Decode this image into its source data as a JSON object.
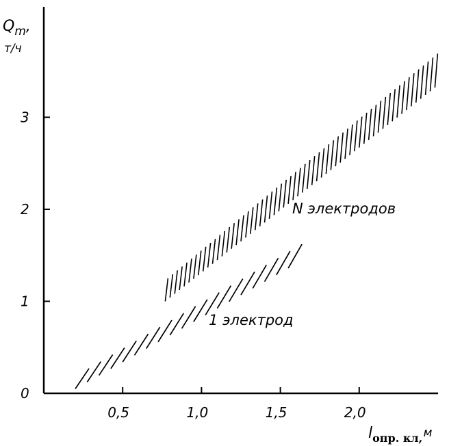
{
  "chart_data": {
    "type": "area",
    "ylabel_main": "Q",
    "ylabel_sub": "m",
    "ylabel_comma": ",",
    "ylabel_unit": "т/ч",
    "xlabel_main": "l",
    "xlabel_sub": "опр. кл",
    "xlabel_comma": ",",
    "xlabel_unit": "м",
    "xlim": [
      0,
      2.5
    ],
    "ylim": [
      0,
      4.2
    ],
    "x_ticks": [
      {
        "value": 0.5,
        "label": "0,5"
      },
      {
        "value": 1.0,
        "label": "1,0"
      },
      {
        "value": 1.5,
        "label": "1,5"
      },
      {
        "value": 2.0,
        "label": "2,0"
      }
    ],
    "y_ticks": [
      {
        "value": 0,
        "label": "0"
      },
      {
        "value": 1,
        "label": "1"
      },
      {
        "value": 2,
        "label": "2"
      },
      {
        "value": 3,
        "label": "3"
      }
    ],
    "grid": false,
    "series": [
      {
        "name": "N электродов",
        "hatch": "dense",
        "lower": [
          [
            0.77,
            1.0
          ],
          [
            2.5,
            3.35
          ]
        ],
        "upper": [
          [
            0.77,
            1.25
          ],
          [
            2.5,
            3.72
          ]
        ]
      },
      {
        "name": "1 электрод",
        "hatch": "diagonal",
        "lower": [
          [
            0.2,
            0.05
          ],
          [
            1.55,
            1.36
          ]
        ],
        "upper": [
          [
            0.15,
            0.22
          ],
          [
            1.55,
            1.62
          ]
        ]
      }
    ]
  }
}
